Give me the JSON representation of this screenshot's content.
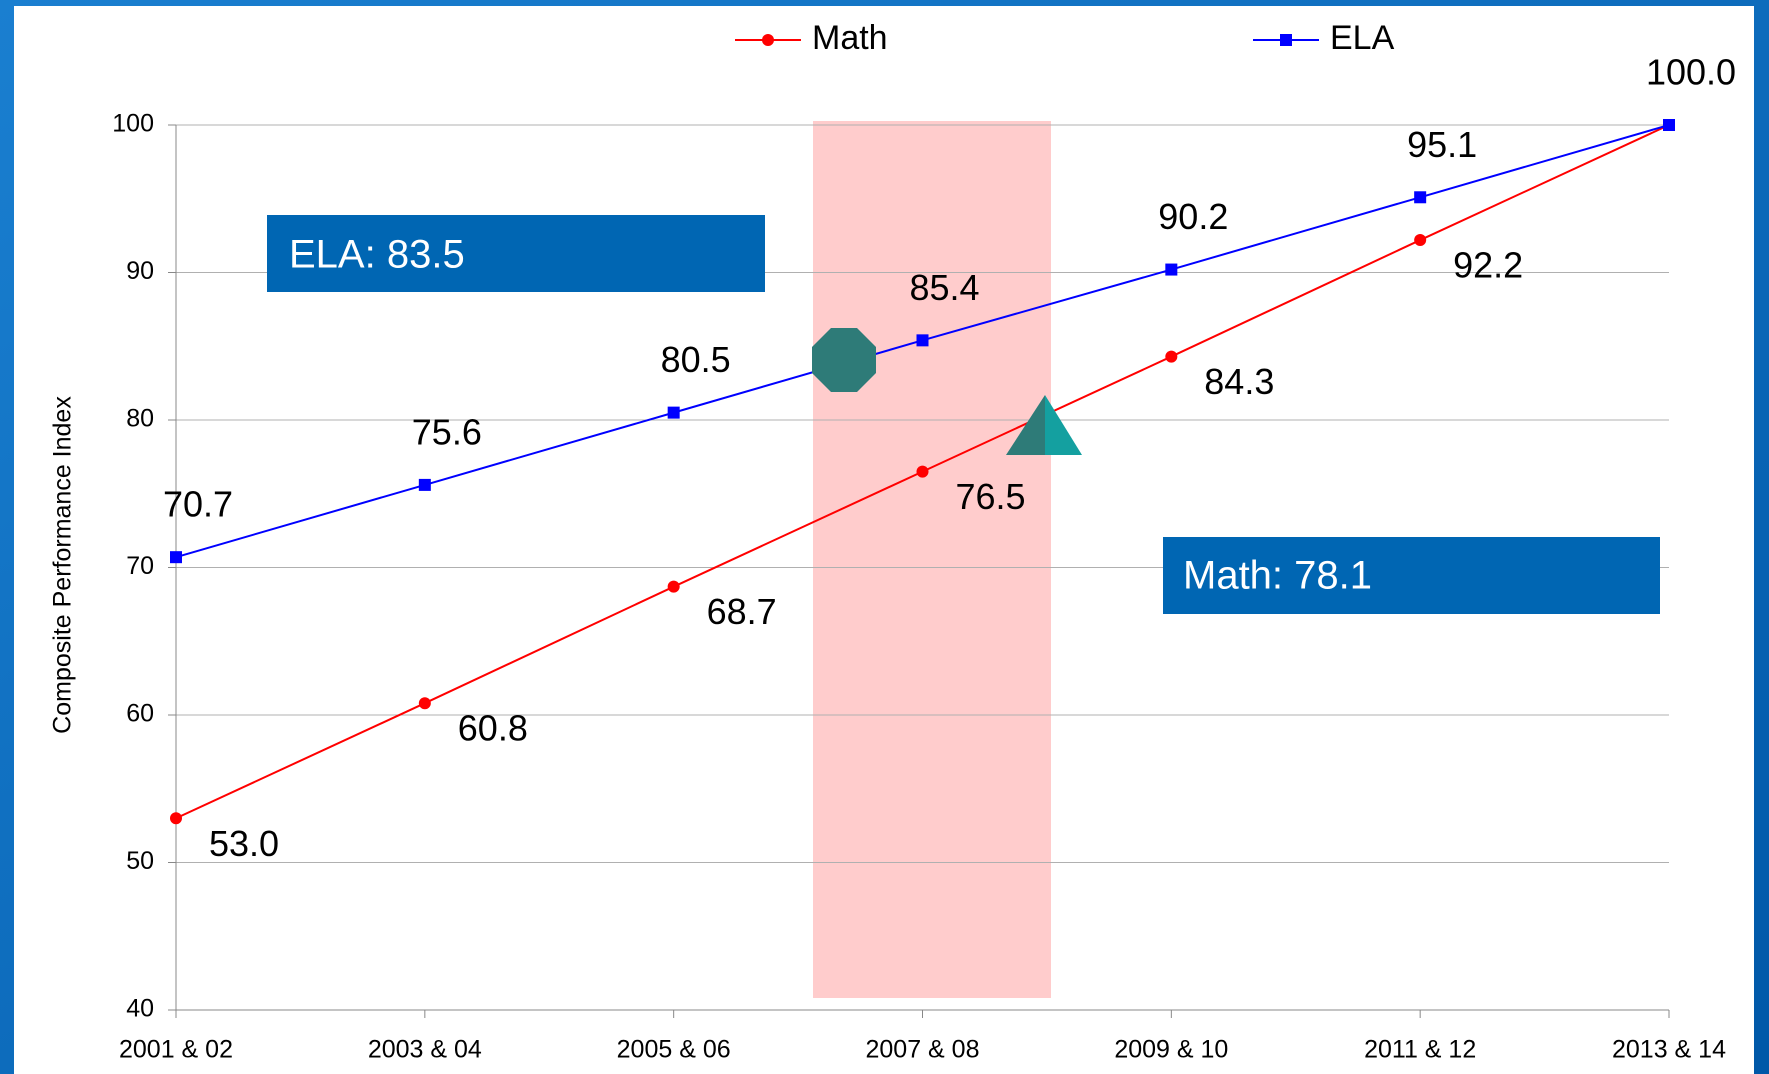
{
  "chart_data": {
    "type": "line",
    "y_label": "Composite Performance Index",
    "categories": [
      "2001 & 02",
      "2003 & 04",
      "2005 & 06",
      "2007 & 08",
      "2009 & 10",
      "2011 & 12",
      "2013 & 14"
    ],
    "series": [
      {
        "name": "Math",
        "color": "#ff0000",
        "marker": "circle",
        "values": [
          53.0,
          60.8,
          68.7,
          76.5,
          84.3,
          92.2,
          100.0
        ],
        "value_labels": [
          "53.0",
          "60.8",
          "68.7",
          "76.5",
          "84.3",
          "92.2",
          null
        ]
      },
      {
        "name": "ELA",
        "color": "#0000ff",
        "marker": "square",
        "values": [
          70.7,
          75.6,
          80.5,
          85.4,
          90.2,
          95.1,
          100.0
        ],
        "value_labels": [
          "70.7",
          "75.6",
          "80.5",
          "85.4",
          "90.2",
          "95.1",
          "100.0"
        ]
      }
    ],
    "annotations": [
      "ELA: 83.5",
      "Math: 78.1"
    ],
    "ylim": [
      40,
      100
    ],
    "yticks": [
      40,
      50,
      60,
      70,
      80,
      90,
      100
    ],
    "grid": true,
    "legend": "top"
  }
}
